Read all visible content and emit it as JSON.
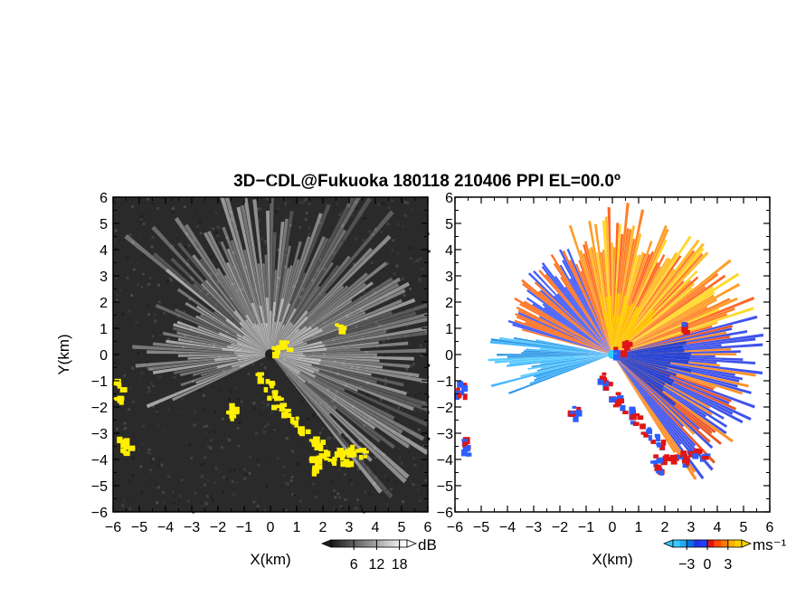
{
  "title": "3D−CDL@Fukuoka 180118 210406 PPI EL=00.0º",
  "chart_data": [
    {
      "type": "heatmap",
      "panel": "reflectivity",
      "xlabel": "X(km)",
      "ylabel": "Y(km)",
      "xlim": [
        -6,
        6
      ],
      "ylim": [
        -6,
        6
      ],
      "xticks": [
        "−6",
        "−5",
        "−4",
        "−3",
        "−2",
        "−1",
        "0",
        "1",
        "2",
        "3",
        "4",
        "5",
        "6"
      ],
      "yticks": [
        "−6",
        "−5",
        "−4",
        "−3",
        "−2",
        "−1",
        "0",
        "1",
        "2",
        "3",
        "4",
        "5",
        "6"
      ],
      "colorbar": {
        "unit": "dB",
        "ticks": [
          "6",
          "12",
          "18"
        ],
        "tick_values": [
          6,
          12,
          18
        ],
        "range": [
          0,
          20
        ]
      },
      "colors": {
        "background": "#2a2a2a",
        "beam": "#ffffff",
        "flag": "#ffef00"
      }
    },
    {
      "type": "heatmap",
      "panel": "doppler-velocity",
      "xlabel": "X(km)",
      "ylabel": "",
      "xlim": [
        -6,
        6
      ],
      "ylim": [
        -6,
        6
      ],
      "xticks": [
        "−6",
        "−5",
        "−4",
        "−3",
        "−2",
        "−1",
        "0",
        "1",
        "2",
        "3",
        "4",
        "5",
        "6"
      ],
      "yticks": [
        "−6",
        "−5",
        "−4",
        "−3",
        "−2",
        "−1",
        "0",
        "1",
        "2",
        "3",
        "4",
        "5",
        "6"
      ],
      "colorbar": {
        "unit": "ms⁻¹",
        "ticks": [
          "−3",
          "0",
          "3"
        ],
        "tick_values": [
          -3,
          0,
          3
        ],
        "range": [
          -5,
          5
        ]
      },
      "colors": {
        "negative": "#2a5fff",
        "zero": "#1f3fd0",
        "positive": "#ff6a00",
        "strong_positive": "#ffd200",
        "fold_edge": "#e01515"
      }
    }
  ]
}
